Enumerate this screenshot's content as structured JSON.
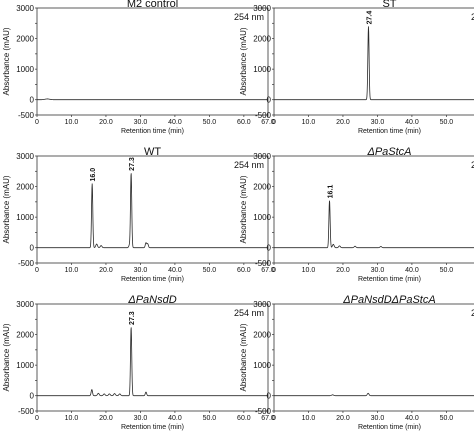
{
  "chart_data": [
    {
      "type": "line",
      "title": "M2 control",
      "title_style": "normal",
      "annotation": "254 nm",
      "xlabel": "Retention time (min)",
      "ylabel": "Absorbance (mAU)",
      "xlim": [
        0,
        67
      ],
      "ylim": [
        -500,
        3000
      ],
      "x_ticks": [
        "0",
        "10.0",
        "20.0",
        "30.0",
        "40.0",
        "50.0",
        "60.0",
        "67.0"
      ],
      "y_ticks": [
        "-500",
        "0",
        "500",
        "1000",
        "1500",
        "2000",
        "2500",
        "3000"
      ],
      "peaks": [
        {
          "x": 3.0,
          "y": 25,
          "width": 0.7,
          "label": ""
        }
      ]
    },
    {
      "type": "line",
      "title": "ST",
      "title_style": "normal",
      "annotation": "254 nm",
      "xlabel": "Retention time (min)",
      "ylabel": "Absorbance (mAU)",
      "xlim": [
        0,
        67
      ],
      "ylim": [
        -500,
        3000
      ],
      "x_ticks": [
        "0",
        "10.0",
        "20.0",
        "30.0",
        "40.0",
        "50.0",
        "60.0",
        "67.0"
      ],
      "y_ticks": [
        "-500",
        "0",
        "500",
        "1000",
        "1500",
        "2000",
        "2500",
        "3000"
      ],
      "peaks": [
        {
          "x": 27.4,
          "y": 2400,
          "width": 0.18,
          "label": "27.4"
        }
      ]
    },
    {
      "type": "line",
      "title": "WT",
      "title_style": "normal",
      "annotation": "254 nm",
      "xlabel": "Retention time (min)",
      "ylabel": "Absorbance (mAU)",
      "xlim": [
        0,
        67
      ],
      "ylim": [
        -500,
        3000
      ],
      "x_ticks": [
        "0",
        "10.0",
        "20.0",
        "30.0",
        "40.0",
        "50.0",
        "60.0",
        "67.0"
      ],
      "y_ticks": [
        "-500",
        "0",
        "500",
        "1000",
        "1500",
        "2000",
        "2500",
        "3000"
      ],
      "peaks": [
        {
          "x": 16.0,
          "y": 2100,
          "width": 0.18,
          "label": "16.0"
        },
        {
          "x": 27.3,
          "y": 2450,
          "width": 0.18,
          "label": "27.3"
        },
        {
          "x": 17.3,
          "y": 120,
          "width": 0.25,
          "label": ""
        },
        {
          "x": 18.6,
          "y": 70,
          "width": 0.25,
          "label": ""
        },
        {
          "x": 26.8,
          "y": 80,
          "width": 0.2,
          "label": ""
        },
        {
          "x": 31.6,
          "y": 160,
          "width": 0.2,
          "label": ""
        },
        {
          "x": 32.1,
          "y": 130,
          "width": 0.2,
          "label": ""
        }
      ]
    },
    {
      "type": "line",
      "title": "ΔPaStcA",
      "title_style": "italic",
      "annotation": "254 nm",
      "xlabel": "Retention time (min)",
      "ylabel": "Absorbance (mAU)",
      "xlim": [
        0,
        67
      ],
      "ylim": [
        -500,
        3000
      ],
      "x_ticks": [
        "0",
        "10.0",
        "20.0",
        "30.0",
        "40.0",
        "50.0",
        "60.0",
        "67.0"
      ],
      "y_ticks": [
        "-500",
        "0",
        "500",
        "1000",
        "1500",
        "2000",
        "2500",
        "3000"
      ],
      "peaks": [
        {
          "x": 16.1,
          "y": 1550,
          "width": 0.18,
          "label": "16.1"
        },
        {
          "x": 17.2,
          "y": 110,
          "width": 0.25,
          "label": ""
        },
        {
          "x": 19.0,
          "y": 60,
          "width": 0.25,
          "label": ""
        },
        {
          "x": 23.5,
          "y": 50,
          "width": 0.25,
          "label": ""
        },
        {
          "x": 31.0,
          "y": 40,
          "width": 0.25,
          "label": ""
        }
      ]
    },
    {
      "type": "line",
      "title": "ΔPaNsdD",
      "title_style": "italic",
      "annotation": "254 nm",
      "xlabel": "Retention time (min)",
      "ylabel": "Absorbance (mAU)",
      "xlim": [
        0,
        67
      ],
      "ylim": [
        -500,
        3000
      ],
      "x_ticks": [
        "0",
        "10.0",
        "20.0",
        "30.0",
        "40.0",
        "50.0",
        "60.0",
        "67.0"
      ],
      "y_ticks": [
        "-500",
        "0",
        "500",
        "1000",
        "1500",
        "2000",
        "2500",
        "3000"
      ],
      "peaks": [
        {
          "x": 27.3,
          "y": 2250,
          "width": 0.18,
          "label": "27.3"
        },
        {
          "x": 15.9,
          "y": 200,
          "width": 0.2,
          "label": ""
        },
        {
          "x": 17.8,
          "y": 80,
          "width": 0.25,
          "label": ""
        },
        {
          "x": 19.5,
          "y": 60,
          "width": 0.25,
          "label": ""
        },
        {
          "x": 21.0,
          "y": 60,
          "width": 0.25,
          "label": ""
        },
        {
          "x": 22.5,
          "y": 70,
          "width": 0.25,
          "label": ""
        },
        {
          "x": 24.0,
          "y": 60,
          "width": 0.25,
          "label": ""
        },
        {
          "x": 31.6,
          "y": 120,
          "width": 0.2,
          "label": ""
        }
      ]
    },
    {
      "type": "line",
      "title": "ΔPaNsdDΔPaStcA",
      "title_style": "italic",
      "annotation": "254 nm",
      "xlabel": "Retention time (min)",
      "ylabel": "Absorbance (mAU)",
      "xlim": [
        0,
        67
      ],
      "ylim": [
        -500,
        3000
      ],
      "x_ticks": [
        "0",
        "10.0",
        "20.0",
        "30.0",
        "40.0",
        "50.0",
        "60.0",
        "67.0"
      ],
      "y_ticks": [
        "-500",
        "0",
        "500",
        "1000",
        "1500",
        "2000",
        "2500",
        "3000"
      ],
      "peaks": [
        {
          "x": 27.3,
          "y": 80,
          "width": 0.25,
          "label": ""
        },
        {
          "x": 17.0,
          "y": 30,
          "width": 0.3,
          "label": ""
        }
      ]
    }
  ]
}
